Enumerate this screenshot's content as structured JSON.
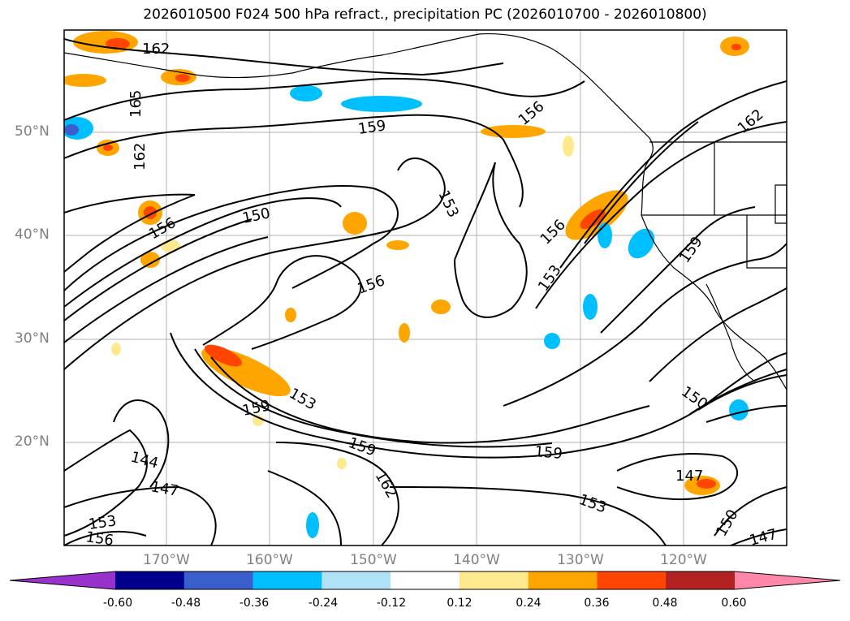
{
  "title": "2026010500 F024 500 hPa refract., precipitation PC (2026010700 - 2026010800)",
  "lat_labels": [
    "50°N",
    "40°N",
    "30°N",
    "20°N"
  ],
  "lon_labels": [
    "170°W",
    "160°W",
    "150°W",
    "140°W",
    "130°W",
    "120°W"
  ],
  "contour_labels": [
    "162",
    "165",
    "162",
    "159",
    "156",
    "162",
    "150",
    "156",
    "153",
    "156",
    "153",
    "159",
    "159",
    "156",
    "153",
    "159",
    "159",
    "162",
    "153",
    "147",
    "144",
    "153",
    "156",
    "150",
    "147",
    "147",
    "150"
  ],
  "colorbar": {
    "ticks": [
      "-0.60",
      "-0.48",
      "-0.36",
      "-0.24",
      "-0.12",
      "0.12",
      "0.24",
      "0.36",
      "0.48",
      "0.60"
    ],
    "colors": [
      "#9932cc",
      "#00008b",
      "#3a5fcd",
      "#00bfff",
      "#afe2f7",
      "#ffffff",
      "#ffe98f",
      "#ffa500",
      "#ff4500",
      "#b22222",
      "#ff88aa"
    ]
  }
}
